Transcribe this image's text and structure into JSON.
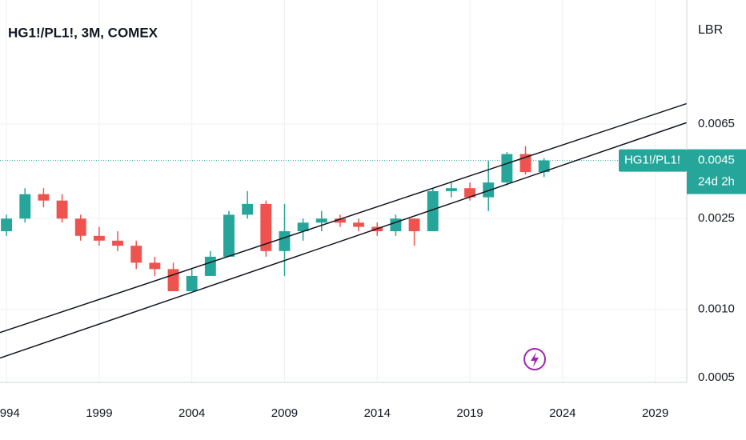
{
  "header": {
    "title": "HG1!/PL1!, 3M, COMEX",
    "scale_label": "LBR"
  },
  "chart_data": {
    "type": "candlestick",
    "x": [
      1994,
      1995,
      1996,
      1997,
      1998,
      1999,
      2000,
      2001,
      2002,
      2003,
      2004,
      2005,
      2006,
      2007,
      2008,
      2009,
      2010,
      2011,
      2012,
      2013,
      2014,
      2015,
      2016,
      2017,
      2018,
      2019,
      2020,
      2021,
      2022,
      2023
    ],
    "open": [
      0.0022,
      0.0025,
      0.0032,
      0.003,
      0.0025,
      0.0021,
      0.002,
      0.0019,
      0.0016,
      0.0015,
      0.0012,
      0.0014,
      0.0017,
      0.0026,
      0.0029,
      0.0018,
      0.0022,
      0.0024,
      0.0025,
      0.0024,
      0.0023,
      0.0022,
      0.0025,
      0.0022,
      0.0033,
      0.0034,
      0.0031,
      0.0036,
      0.0048,
      0.004
    ],
    "high": [
      0.0026,
      0.0034,
      0.0034,
      0.0032,
      0.0026,
      0.0023,
      0.0022,
      0.002,
      0.0017,
      0.0016,
      0.0015,
      0.0018,
      0.0027,
      0.0033,
      0.003,
      0.0029,
      0.0025,
      0.0027,
      0.0026,
      0.0025,
      0.0024,
      0.0026,
      0.0025,
      0.0034,
      0.0036,
      0.0036,
      0.0045,
      0.0049,
      0.0052,
      0.0046
    ],
    "low": [
      0.0021,
      0.0024,
      0.0028,
      0.0024,
      0.002,
      0.0019,
      0.0018,
      0.0015,
      0.0014,
      0.0012,
      0.0012,
      0.0014,
      0.0017,
      0.0025,
      0.0017,
      0.0014,
      0.002,
      0.0022,
      0.0023,
      0.0022,
      0.0021,
      0.0021,
      0.0019,
      0.0022,
      0.0031,
      0.003,
      0.0027,
      0.0035,
      0.0039,
      0.0038
    ],
    "close": [
      0.0025,
      0.0032,
      0.003,
      0.0025,
      0.0021,
      0.002,
      0.0019,
      0.0016,
      0.0015,
      0.0012,
      0.0014,
      0.0017,
      0.0026,
      0.0029,
      0.0018,
      0.0022,
      0.0024,
      0.0025,
      0.0024,
      0.0023,
      0.0022,
      0.0025,
      0.0022,
      0.0033,
      0.0034,
      0.0031,
      0.0036,
      0.0048,
      0.004,
      0.0045
    ],
    "up_color": "#26a69a",
    "down_color": "#ef5350",
    "log_scale": true,
    "xlim": [
      1993.65,
      2030.7
    ],
    "xticks": [
      1994,
      1999,
      2004,
      2009,
      2014,
      2019,
      2024,
      2029
    ],
    "ylim": [
      0.000477,
      0.0228
    ],
    "yticks": [
      0.0065,
      0.0025,
      {
        "value": 0.001,
        "label": "0.0010"
      },
      0.0005
    ],
    "grid": true,
    "trendlines": [
      {
        "x": [
          1993.65,
          2030.7
        ],
        "y": [
          0.00079,
          0.008
        ]
      },
      {
        "x": [
          1993.65,
          2030.7
        ],
        "y": [
          0.00061,
          0.0066
        ]
      }
    ],
    "last_price": 0.0045,
    "symbol_label": "HG1!/PL1!",
    "countdown": "24d 2h"
  }
}
